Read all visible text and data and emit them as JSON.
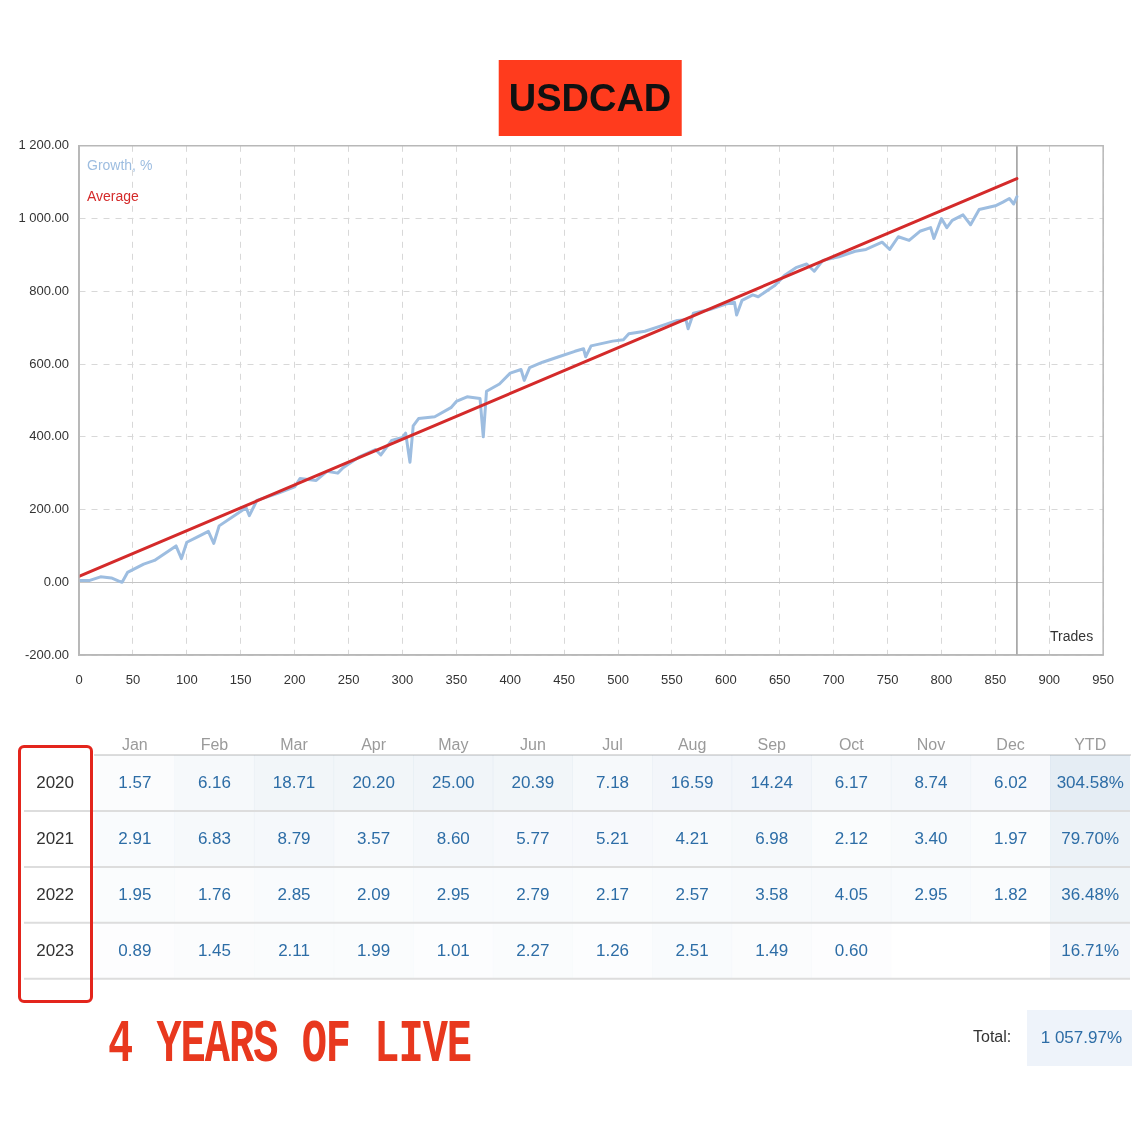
{
  "chart_data": [
    {
      "type": "line",
      "title": "USDCAD",
      "xlabel": "Trades",
      "series": [
        {
          "name": "Growth, %",
          "color": "#9dbde0",
          "x": [
            0,
            10,
            20,
            30,
            38,
            40,
            45,
            60,
            70,
            80,
            90,
            95,
            100,
            110,
            120,
            125,
            130,
            145,
            155,
            158,
            165,
            185,
            200,
            205,
            220,
            230,
            240,
            245,
            260,
            275,
            280,
            290,
            300,
            303,
            307,
            310,
            315,
            330,
            345,
            350,
            360,
            372,
            375,
            378,
            390,
            400,
            410,
            413,
            418,
            430,
            445,
            460,
            468,
            470,
            475,
            495,
            505,
            510,
            525,
            540,
            555,
            563,
            565,
            570,
            585,
            600,
            608,
            610,
            615,
            625,
            630,
            645,
            655,
            665,
            675,
            682,
            690,
            705,
            720,
            730,
            745,
            752,
            760,
            770,
            780,
            790,
            793,
            800,
            805,
            810,
            820,
            827,
            835,
            850,
            857,
            863,
            867,
            870
          ],
          "values": [
            5,
            5,
            15,
            12,
            2,
            0,
            27,
            50,
            60,
            80,
            100,
            65,
            110,
            125,
            140,
            107,
            155,
            185,
            205,
            183,
            225,
            245,
            262,
            285,
            280,
            305,
            300,
            315,
            345,
            365,
            350,
            390,
            398,
            410,
            330,
            430,
            450,
            455,
            480,
            497,
            510,
            505,
            400,
            525,
            545,
            575,
            585,
            555,
            590,
            605,
            620,
            635,
            642,
            620,
            650,
            663,
            667,
            683,
            690,
            705,
            720,
            722,
            697,
            740,
            750,
            765,
            770,
            735,
            775,
            790,
            785,
            815,
            845,
            865,
            875,
            855,
            885,
            895,
            910,
            915,
            935,
            915,
            950,
            940,
            965,
            975,
            945,
            1000,
            975,
            995,
            1010,
            983,
            1025,
            1035,
            1045,
            1055,
            1040,
            1060
          ]
        },
        {
          "name": "Average",
          "color": "#d42a2a",
          "x": [
            0,
            870
          ],
          "values": [
            16,
            1110
          ]
        }
      ],
      "xlim": [
        0,
        950
      ],
      "xticks": [
        0,
        50,
        100,
        150,
        200,
        250,
        300,
        350,
        400,
        450,
        500,
        550,
        600,
        650,
        700,
        750,
        800,
        850,
        900,
        950
      ],
      "ylim": [
        -200,
        1200
      ],
      "yticks": [
        {
          "value": -200,
          "label": "-200.00"
        },
        {
          "value": 0,
          "label": "0.00"
        },
        {
          "value": 200,
          "label": "200.00"
        },
        {
          "value": 400,
          "label": "400.00"
        },
        {
          "value": 600,
          "label": "600.00"
        },
        {
          "value": 800,
          "label": "800.00"
        },
        {
          "value": 1000,
          "label": "1 000.00"
        },
        {
          "value": 1200,
          "label": "1 200.00"
        }
      ],
      "grid": true,
      "legend": "top left",
      "ref_lines": [
        {
          "axis": "x",
          "value": 870,
          "color": "#999999"
        }
      ]
    },
    {
      "type": "heatmap",
      "categories": [
        "Jan",
        "Feb",
        "Mar",
        "Apr",
        "May",
        "Jun",
        "Jul",
        "Aug",
        "Sep",
        "Oct",
        "Nov",
        "Dec",
        "YTD"
      ],
      "y_categories": [
        "2020",
        "2021",
        "2022",
        "2023"
      ],
      "cells": [
        [
          1.57,
          6.16,
          18.71,
          20.2,
          25.0,
          20.39,
          7.18,
          16.59,
          14.24,
          6.17,
          8.74,
          6.02,
          304.58
        ],
        [
          2.91,
          6.83,
          8.79,
          3.57,
          8.6,
          5.77,
          5.21,
          4.21,
          6.98,
          2.12,
          3.4,
          1.97,
          79.7
        ],
        [
          1.95,
          1.76,
          2.85,
          2.09,
          2.95,
          2.79,
          2.17,
          2.57,
          3.58,
          4.05,
          2.95,
          1.82,
          36.48
        ],
        [
          0.89,
          1.45,
          2.11,
          1.99,
          1.01,
          2.27,
          1.26,
          2.51,
          1.49,
          0.6,
          null,
          null,
          16.71
        ]
      ],
      "cell_labels": [
        [
          "1.57",
          "6.16",
          "18.71",
          "20.20",
          "25.00",
          "20.39",
          "7.18",
          "16.59",
          "14.24",
          "6.17",
          "8.74",
          "6.02",
          "304.58%"
        ],
        [
          "2.91",
          "6.83",
          "8.79",
          "3.57",
          "8.60",
          "5.77",
          "5.21",
          "4.21",
          "6.98",
          "2.12",
          "3.40",
          "1.97",
          "79.70%"
        ],
        [
          "1.95",
          "1.76",
          "2.85",
          "2.09",
          "2.95",
          "2.79",
          "2.17",
          "2.57",
          "3.58",
          "4.05",
          "2.95",
          "1.82",
          "36.48%"
        ],
        [
          "0.89",
          "1.45",
          "2.11",
          "1.99",
          "1.01",
          "2.27",
          "1.26",
          "2.51",
          "1.49",
          "0.60",
          null,
          null,
          "16.71%"
        ]
      ],
      "annotations": [
        "4 YEARS OF LIVE",
        "Total:",
        "1 057.97%"
      ]
    }
  ]
}
